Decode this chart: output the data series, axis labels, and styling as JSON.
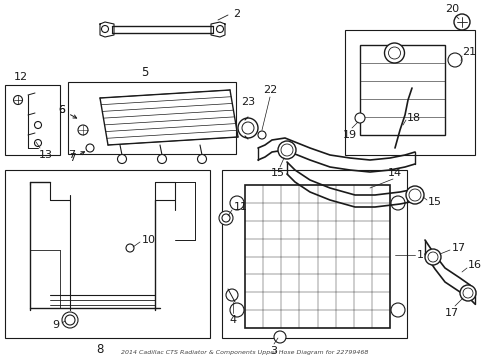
{
  "title": "2014 Cadillac CTS Radiator & Components Upper Hose Diagram for 22799468",
  "bg": "#ffffff",
  "lc": "#1a1a1a",
  "parts": {
    "part2_label": "2",
    "part5_label": "5",
    "part6_label": "6",
    "part7_label": "7",
    "part8_label": "8",
    "part9_label": "9",
    "part10_label": "10",
    "part11_label": "11",
    "part12_label": "12",
    "part13_label": "13",
    "part14_label": "14",
    "part15_label": "15",
    "part16_label": "16",
    "part17_label": "17",
    "part18_label": "18",
    "part19_label": "19",
    "part20_label": "20",
    "part21_label": "21",
    "part22_label": "22",
    "part23_label": "23",
    "part1_label": "1",
    "part3_label": "3",
    "part4_label": "4"
  }
}
